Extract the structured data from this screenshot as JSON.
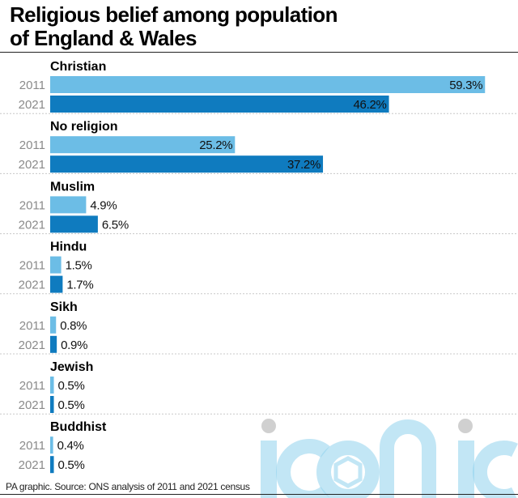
{
  "header": {
    "title_line1": "Religious belief among population",
    "title_line2": "of England & Wales"
  },
  "footer": {
    "source": "PA graphic. Source: ONS analysis of 2011 and 2021 census"
  },
  "watermark": {
    "text": "iconic"
  },
  "colors": {
    "series_2011": "#6cbde6",
    "series_2021": "#0f7bbf",
    "year_label": "#8a8a8a",
    "separator": "#c8c8c8"
  },
  "chart_data": {
    "type": "bar",
    "orientation": "horizontal",
    "title": "Religious belief among population of England & Wales",
    "categories": [
      "Christian",
      "No religion",
      "Muslim",
      "Hindu",
      "Sikh",
      "Jewish",
      "Buddhist"
    ],
    "series": [
      {
        "name": "2011",
        "values": [
          59.3,
          25.2,
          4.9,
          1.5,
          0.8,
          0.5,
          0.4
        ]
      },
      {
        "name": "2021",
        "values": [
          46.2,
          37.2,
          6.5,
          1.7,
          0.9,
          0.5,
          0.5
        ]
      }
    ],
    "value_labels": {
      "2011": [
        "59.3%",
        "25.2%",
        "4.9%",
        "1.5%",
        "0.8%",
        "0.5%",
        "0.4%"
      ],
      "2021": [
        "46.2%",
        "37.2%",
        "6.5%",
        "1.7%",
        "0.9%",
        "0.5%",
        "0.5%"
      ]
    },
    "unit": "%",
    "grid": false,
    "legend": "none"
  }
}
